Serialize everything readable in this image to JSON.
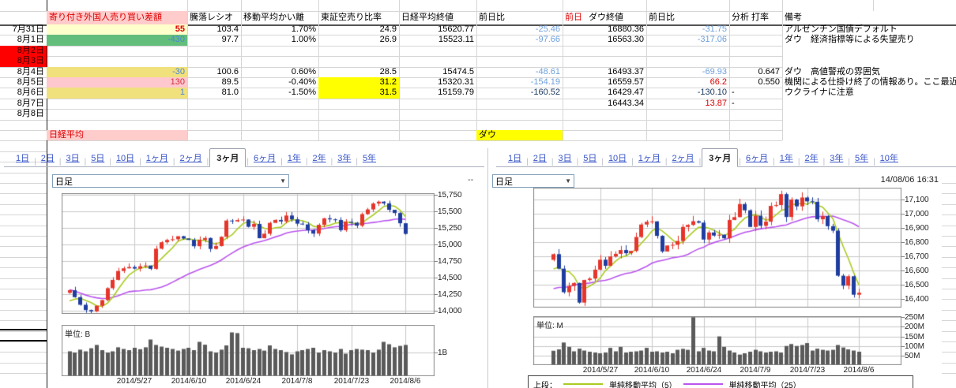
{
  "sheet": {
    "headers": {
      "date": "",
      "foreign": "寄り付き外国人売り買い差額",
      "ratio": "騰落レシオ",
      "ma_dev": "移動平均かい離",
      "short_ratio": "東証空売り比率",
      "nikkei_close": "日経平均終値",
      "nikkei_chg": "前日比",
      "dow_prev": "前日",
      "dow_close": "ダウ終値",
      "dow_chg": "前日比",
      "analysis": "分析 打率",
      "note": "備考"
    },
    "header_styles": {
      "foreign_bg": "#ffcccc",
      "foreign_color": "#dd0000",
      "dow_prev_color": "#dd0000"
    },
    "rows": [
      {
        "date": "7月31日",
        "cells": {
          "foreign": {
            "t": "55",
            "bg": "#ffffcc",
            "c": "#e00000",
            "b": true
          },
          "ratio": {
            "t": "103.4"
          },
          "ma_dev": {
            "t": "1.70%"
          },
          "short_ratio": {
            "t": "24.9"
          },
          "nikkei_close": {
            "t": "15620.77"
          },
          "nikkei_chg": {
            "t": "-25.46",
            "c": "#6fa0dc"
          },
          "dow_close": {
            "t": "16880.36"
          },
          "dow_chg": {
            "t": "-31.75",
            "c": "#6fa0dc"
          },
          "note": {
            "t": "アルゼンチン国債デフォルト"
          }
        }
      },
      {
        "date": "8月1日",
        "cells": {
          "foreign": {
            "t": "-430",
            "bg": "#63be7b",
            "c": "#4a86d8"
          },
          "ratio": {
            "t": "97.7"
          },
          "ma_dev": {
            "t": "1.00%"
          },
          "short_ratio": {
            "t": "26.9"
          },
          "nikkei_close": {
            "t": "15523.11"
          },
          "nikkei_chg": {
            "t": "-97.66",
            "c": "#6fa0dc"
          },
          "dow_close": {
            "t": "16563.30"
          },
          "dow_chg": {
            "t": "-317.06",
            "c": "#6fa0dc"
          },
          "note": {
            "t": "ダウ　経済指標等による失望売り"
          }
        }
      },
      {
        "date": "8月2日",
        "date_bg": "#ff0000",
        "cells": {}
      },
      {
        "date": "8月3日",
        "date_bg": "#ff0000",
        "cells": {}
      },
      {
        "date": "8月4日",
        "cells": {
          "foreign": {
            "t": "-30",
            "bg": "#f0e17c",
            "c": "#4a86d8"
          },
          "ratio": {
            "t": "100.6"
          },
          "ma_dev": {
            "t": "0.60%"
          },
          "short_ratio": {
            "t": "28.5"
          },
          "nikkei_close": {
            "t": "15474.5"
          },
          "nikkei_chg": {
            "t": "-48.61",
            "c": "#6fa0dc"
          },
          "dow_close": {
            "t": "16493.37"
          },
          "dow_chg": {
            "t": "-69.93",
            "c": "#6fa0dc"
          },
          "analysis": {
            "t": "0.647",
            "al": "r"
          },
          "note": {
            "t": "ダウ　高値警戒の雰囲気"
          }
        }
      },
      {
        "date": "8月5日",
        "cells": {
          "foreign": {
            "t": "130",
            "bg": "#ffc7ce",
            "c": "#d03040"
          },
          "ratio": {
            "t": "89.5"
          },
          "ma_dev": {
            "t": "-0.40%"
          },
          "short_ratio": {
            "t": "31.2",
            "bg": "#ffff00"
          },
          "nikkei_close": {
            "t": "15320.31"
          },
          "nikkei_chg": {
            "t": "-154.19",
            "c": "#6fa0dc"
          },
          "dow_close": {
            "t": "16559.57"
          },
          "dow_chg": {
            "t": "66.2",
            "c": "#dd0000"
          },
          "analysis": {
            "t": "0.550",
            "al": "r"
          },
          "note": {
            "t": "機関による仕掛け終了の情報あり。ここ最近"
          }
        }
      },
      {
        "date": "8月6日",
        "cells": {
          "foreign": {
            "t": "1",
            "bg": "#f0e17c",
            "c": "#4a86d8"
          },
          "ratio": {
            "t": "81.0"
          },
          "ma_dev": {
            "t": "-1.50%"
          },
          "short_ratio": {
            "t": "31.5",
            "bg": "#ffff00"
          },
          "nikkei_close": {
            "t": "15159.79"
          },
          "nikkei_chg": {
            "t": "-160.52",
            "c": "#17375d"
          },
          "dow_close": {
            "t": "16429.47"
          },
          "dow_chg": {
            "t": "-130.10",
            "c": "#17375d"
          },
          "analysis": {
            "t": "-",
            "al": "l"
          },
          "note": {
            "t": "ウクライナに注意"
          }
        }
      },
      {
        "date": "8月7日",
        "cells": {
          "dow_close": {
            "t": "16443.34"
          },
          "dow_chg": {
            "t": "13.87",
            "c": "#dd0000"
          },
          "analysis": {
            "t": "-",
            "al": "l"
          }
        }
      },
      {
        "date": "8月8日",
        "cells": {}
      },
      {
        "date": "",
        "cells": {}
      },
      {
        "date": "",
        "cells": {
          "foreign": {
            "t": "日経平均",
            "bg": "#ffcccc",
            "c": "#dd0000",
            "al": "l"
          },
          "nikkei_chg": {
            "t": "ダウ",
            "bg": "#ffff00",
            "c": "#000000",
            "al": "l"
          }
        }
      }
    ]
  },
  "left_panel": {
    "tabs": [
      "1日",
      "2日",
      "3日",
      "5日",
      "10日",
      "1ヶ月",
      "2ヶ月",
      "3ヶ月",
      "6ヶ月",
      "1年",
      "2年",
      "3年",
      "5年"
    ],
    "selected_tab": "3ヶ月",
    "interval": "日足",
    "overflow_dash": "--"
  },
  "right_panel": {
    "tabs": [
      "1日",
      "2日",
      "3日",
      "5日",
      "10日",
      "1ヶ月",
      "2ヶ月",
      "3ヶ月",
      "6ヶ月",
      "1年",
      "2年",
      "3年",
      "5年",
      "10年"
    ],
    "selected_tab": "3ヶ月",
    "interval": "日足",
    "timestamp": "14/08/06 16:31"
  },
  "chart_data": [
    {
      "type": "candlestick+volume",
      "instrument_label": "日経平均",
      "interval": "日足",
      "period": "3ヶ月",
      "y_ticks": [
        {
          "v": 15750,
          "label": "15,750"
        },
        {
          "v": 15500,
          "label": "15,500"
        },
        {
          "v": 15250,
          "label": "15,250"
        },
        {
          "v": 15000,
          "label": "15,000"
        },
        {
          "v": 14750,
          "label": "14,750"
        },
        {
          "v": 14500,
          "label": "14,500"
        },
        {
          "v": 14250,
          "label": "14,250"
        },
        {
          "v": 14000,
          "label": "14,000"
        }
      ],
      "ylim": [
        13950,
        15800
      ],
      "x_labels": [
        {
          "i": 12,
          "label": "2014/5/27"
        },
        {
          "i": 22,
          "label": "2014/6/10"
        },
        {
          "i": 32,
          "label": "2014/6/24"
        },
        {
          "i": 42,
          "label": "2014/7/8"
        },
        {
          "i": 52,
          "label": "2014/7/23"
        },
        {
          "i": 62,
          "label": "2014/8/6"
        }
      ],
      "closes": [
        14310,
        14205,
        14090,
        14010,
        13990,
        14075,
        14160,
        14340,
        14465,
        14600,
        14640,
        14660,
        14636,
        14671,
        14682,
        14632,
        14936,
        15034,
        15068,
        15079,
        15124,
        15090,
        15069,
        14974,
        15069,
        15098,
        14933,
        14976,
        15116,
        15361,
        15349,
        15369,
        15376,
        15267,
        15309,
        15095,
        15162,
        15326,
        15370,
        15348,
        15437,
        15379,
        15314,
        15303,
        15216,
        15164,
        15297,
        15395,
        15379,
        15370,
        15216,
        15343,
        15329,
        15284,
        15458,
        15529,
        15618,
        15646,
        15620.77,
        15523.11,
        15474.5,
        15320.31,
        15159.79
      ],
      "pre_closes": [
        14832,
        14791,
        14750,
        14606,
        14512,
        14424,
        14299,
        14063,
        13960,
        13885,
        13910,
        14417,
        14546,
        14404,
        14512,
        14485,
        14457,
        14288,
        14076,
        14021,
        14078,
        14033,
        14163,
        14163
      ],
      "volumes": [
        1.05,
        1.0,
        1.12,
        1.05,
        1.18,
        1.32,
        1.1,
        1.0,
        1.05,
        1.22,
        1.15,
        1.1,
        1.2,
        1.14,
        1.22,
        1.55,
        1.32,
        1.25,
        1.2,
        1.15,
        1.08,
        1.15,
        1.2,
        1.1,
        1.45,
        1.33,
        1.05,
        1.0,
        1.12,
        1.3,
        1.85,
        1.82,
        1.2,
        1.18,
        1.1,
        1.15,
        1.08,
        1.3,
        1.15,
        1.1,
        1.02,
        0.92,
        1.05,
        1.1,
        1.15,
        1.2,
        1.0,
        1.1,
        1.05,
        1.0,
        1.15,
        0.95,
        1.1,
        1.15,
        1.12,
        1.1,
        1.0,
        1.12,
        1.45,
        1.35,
        1.22,
        1.28,
        1.32
      ],
      "volume_unit_label": "単位: B",
      "volume_ticks": [
        {
          "v": 1,
          "label": "1B"
        }
      ],
      "ma_periods": [
        5,
        25
      ]
    },
    {
      "type": "candlestick+volume",
      "instrument_label": "ダウ",
      "interval": "日足",
      "period": "3ヶ月",
      "y_ticks": [
        {
          "v": 17100,
          "label": "17,100"
        },
        {
          "v": 17000,
          "label": "17,000"
        },
        {
          "v": 16900,
          "label": "16,900"
        },
        {
          "v": 16800,
          "label": "16,800"
        },
        {
          "v": 16700,
          "label": "16,700"
        },
        {
          "v": 16600,
          "label": "16,600"
        },
        {
          "v": 16500,
          "label": "16,500"
        },
        {
          "v": 16400,
          "label": "16,400"
        }
      ],
      "ylim": [
        16340,
        17180
      ],
      "x_labels": [
        {
          "i": 9,
          "label": "2014/5/27"
        },
        {
          "i": 19,
          "label": "2014/6/10"
        },
        {
          "i": 29,
          "label": "2014/6/24"
        },
        {
          "i": 39,
          "label": "2014/7/9"
        },
        {
          "i": 49,
          "label": "2014/7/23"
        },
        {
          "i": 59,
          "label": "2014/8/6"
        }
      ],
      "closes": [
        16715,
        16613,
        16447,
        16491,
        16512,
        16374,
        16533,
        16543,
        16606,
        16676,
        16633,
        16699,
        16717,
        16744,
        16722,
        16738,
        16836,
        16924,
        16943,
        16946,
        16844,
        16734,
        16776,
        16781,
        16808,
        16907,
        16921,
        16947,
        16937,
        16818,
        16868,
        16846,
        16852,
        16827,
        16956,
        16976,
        17068,
        17024,
        16907,
        16986,
        16915,
        16944,
        17055,
        17061,
        17138,
        16977,
        17100,
        17052,
        17114,
        17087,
        17084,
        16961,
        16983,
        16912,
        16880.36,
        16563.3,
        16493.37,
        16559.57,
        16429.47,
        16443.34
      ],
      "pre_closes": [
        16398,
        16409,
        16418,
        16177,
        16262,
        16413,
        16437,
        16408,
        16501,
        16530,
        16449,
        16361,
        16424,
        16448,
        16580,
        16559,
        16513,
        16531,
        16401,
        16519,
        16551,
        16583,
        16511,
        16695
      ],
      "volumes": [
        75,
        82,
        118,
        95,
        72,
        86,
        76,
        70,
        66,
        62,
        66,
        90,
        72,
        95,
        66,
        70,
        72,
        76,
        90,
        70,
        72,
        66,
        70,
        62,
        80,
        85,
        80,
        250,
        72,
        90,
        76,
        72,
        150,
        95,
        76,
        66,
        55,
        62,
        70,
        80,
        72,
        66,
        70,
        72,
        66,
        100,
        110,
        100,
        105,
        115,
        76,
        86,
        80,
        76,
        80,
        105,
        92,
        82,
        76,
        70
      ],
      "volume_unit_label": "単位: M",
      "volume_ticks": [
        {
          "v": 250,
          "label": "250M"
        },
        {
          "v": 200,
          "label": "200M"
        },
        {
          "v": 150,
          "label": "150M"
        },
        {
          "v": 100,
          "label": "100M"
        },
        {
          "v": 50,
          "label": "50M"
        }
      ],
      "ma_periods": [
        5,
        25
      ],
      "legend": {
        "prefix": "上段：",
        "items": [
          {
            "label": "単純移動平均（5）",
            "color": "#aacc22"
          },
          {
            "label": "単純移動平均（25）",
            "color": "#bb55ee"
          }
        ]
      }
    }
  ],
  "colors": {
    "up": "#e6352b",
    "down": "#1f3da0",
    "ma5": "#aacc22",
    "ma25": "#bb55ee",
    "volume_bar": "#5a5a5a",
    "chart_grid": "#c8c8c8",
    "chart_border": "#8a8a8a",
    "sheet_grid": "#d6d6d6",
    "highlight_yellow": "#ffff00",
    "highlight_pink": "#ffc7ce",
    "highlight_green": "#63be7b",
    "highlight_khaki": "#f0e17c",
    "highlight_paleyellow": "#ffffcc"
  }
}
